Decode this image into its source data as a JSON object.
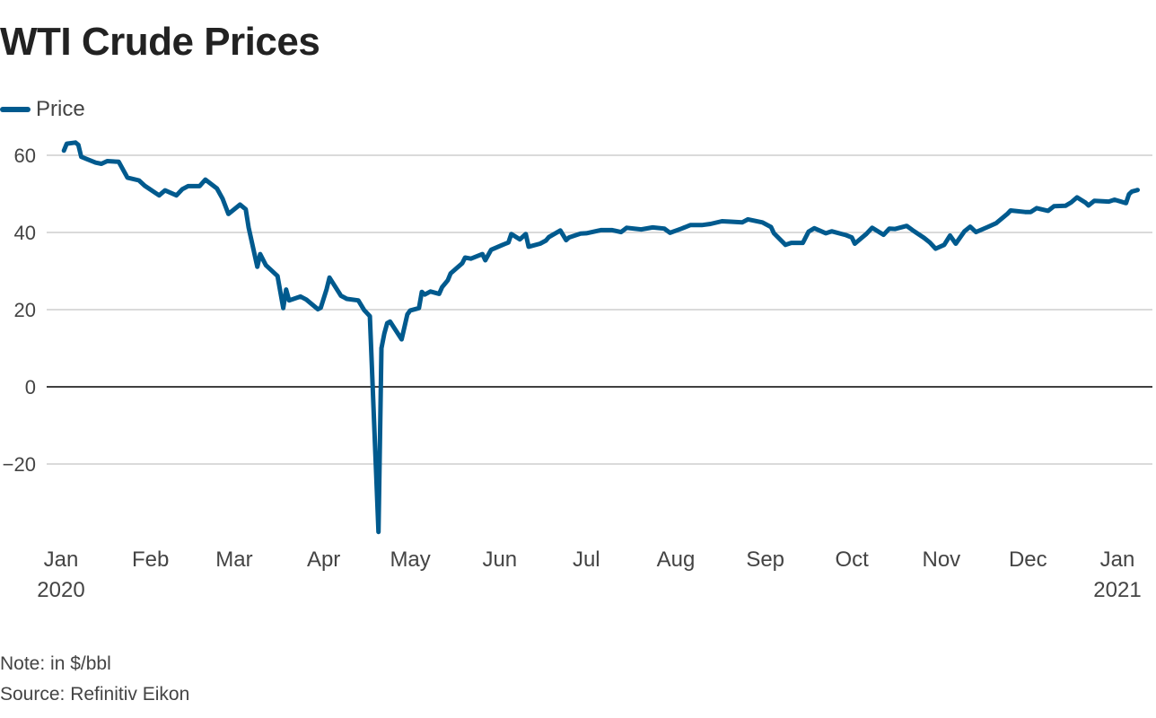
{
  "title": "WTI Crude Prices",
  "legend": {
    "label": "Price",
    "color": "#005a8e"
  },
  "notes": {
    "note": "Note: in $/bbl",
    "source": "Source: Refinitiv Eikon"
  },
  "chart_data": {
    "type": "line",
    "title": "WTI Crude Prices",
    "xlabel": "",
    "ylabel": "",
    "ylim": [
      -38,
      66
    ],
    "yticks": [
      60,
      40,
      20,
      0,
      -20
    ],
    "ytick_labels": [
      "60",
      "40",
      "20",
      "0",
      "−20"
    ],
    "xlim": [
      "2020-01-02",
      "2021-01-08"
    ],
    "xticks": [
      {
        "date": "2020-01-01",
        "label": "Jan",
        "sub": "2020"
      },
      {
        "date": "2020-02-01",
        "label": "Feb",
        "sub": ""
      },
      {
        "date": "2020-03-01",
        "label": "Mar",
        "sub": ""
      },
      {
        "date": "2020-04-01",
        "label": "Apr",
        "sub": ""
      },
      {
        "date": "2020-05-01",
        "label": "May",
        "sub": ""
      },
      {
        "date": "2020-06-01",
        "label": "Jun",
        "sub": ""
      },
      {
        "date": "2020-07-01",
        "label": "Jul",
        "sub": ""
      },
      {
        "date": "2020-08-01",
        "label": "Aug",
        "sub": ""
      },
      {
        "date": "2020-09-01",
        "label": "Sep",
        "sub": ""
      },
      {
        "date": "2020-10-01",
        "label": "Oct",
        "sub": ""
      },
      {
        "date": "2020-11-01",
        "label": "Nov",
        "sub": ""
      },
      {
        "date": "2020-12-01",
        "label": "Dec",
        "sub": ""
      },
      {
        "date": "2021-01-01",
        "label": "Jan",
        "sub": "2021"
      }
    ],
    "grid": true,
    "legend_position": "top-left",
    "series": [
      {
        "name": "Price",
        "color": "#005a8e",
        "points": [
          [
            "2020-01-02",
            61.2
          ],
          [
            "2020-01-03",
            63.0
          ],
          [
            "2020-01-06",
            63.3
          ],
          [
            "2020-01-07",
            62.7
          ],
          [
            "2020-01-08",
            59.6
          ],
          [
            "2020-01-10",
            59.0
          ],
          [
            "2020-01-13",
            58.1
          ],
          [
            "2020-01-15",
            57.8
          ],
          [
            "2020-01-17",
            58.5
          ],
          [
            "2020-01-21",
            58.3
          ],
          [
            "2020-01-23",
            55.6
          ],
          [
            "2020-01-24",
            54.2
          ],
          [
            "2020-01-28",
            53.5
          ],
          [
            "2020-01-30",
            52.1
          ],
          [
            "2020-02-03",
            50.1
          ],
          [
            "2020-02-04",
            49.6
          ],
          [
            "2020-02-06",
            50.9
          ],
          [
            "2020-02-10",
            49.6
          ],
          [
            "2020-02-12",
            51.2
          ],
          [
            "2020-02-14",
            52.0
          ],
          [
            "2020-02-18",
            52.0
          ],
          [
            "2020-02-20",
            53.7
          ],
          [
            "2020-02-24",
            51.4
          ],
          [
            "2020-02-26",
            48.7
          ],
          [
            "2020-02-28",
            44.8
          ],
          [
            "2020-03-03",
            47.2
          ],
          [
            "2020-03-05",
            46.0
          ],
          [
            "2020-03-06",
            41.3
          ],
          [
            "2020-03-09",
            31.1
          ],
          [
            "2020-03-10",
            34.4
          ],
          [
            "2020-03-12",
            31.5
          ],
          [
            "2020-03-16",
            28.7
          ],
          [
            "2020-03-18",
            20.4
          ],
          [
            "2020-03-19",
            25.2
          ],
          [
            "2020-03-20",
            22.4
          ],
          [
            "2020-03-24",
            23.4
          ],
          [
            "2020-03-26",
            22.6
          ],
          [
            "2020-03-30",
            20.1
          ],
          [
            "2020-03-31",
            20.5
          ],
          [
            "2020-04-02",
            25.3
          ],
          [
            "2020-04-03",
            28.3
          ],
          [
            "2020-04-07",
            23.6
          ],
          [
            "2020-04-09",
            22.8
          ],
          [
            "2020-04-13",
            22.4
          ],
          [
            "2020-04-15",
            19.9
          ],
          [
            "2020-04-17",
            18.3
          ],
          [
            "2020-04-20",
            -37.6
          ],
          [
            "2020-04-21",
            10.0
          ],
          [
            "2020-04-22",
            13.8
          ],
          [
            "2020-04-23",
            16.5
          ],
          [
            "2020-04-24",
            16.9
          ],
          [
            "2020-04-28",
            12.3
          ],
          [
            "2020-04-30",
            18.8
          ],
          [
            "2020-05-01",
            19.8
          ],
          [
            "2020-05-04",
            20.4
          ],
          [
            "2020-05-05",
            24.6
          ],
          [
            "2020-05-06",
            23.9
          ],
          [
            "2020-05-08",
            24.7
          ],
          [
            "2020-05-11",
            24.1
          ],
          [
            "2020-05-12",
            25.8
          ],
          [
            "2020-05-14",
            27.6
          ],
          [
            "2020-05-15",
            29.4
          ],
          [
            "2020-05-19",
            32.0
          ],
          [
            "2020-05-20",
            33.5
          ],
          [
            "2020-05-22",
            33.2
          ],
          [
            "2020-05-26",
            34.4
          ],
          [
            "2020-05-27",
            32.8
          ],
          [
            "2020-05-29",
            35.5
          ],
          [
            "2020-06-02",
            36.8
          ],
          [
            "2020-06-04",
            37.4
          ],
          [
            "2020-06-05",
            39.6
          ],
          [
            "2020-06-08",
            38.2
          ],
          [
            "2020-06-10",
            39.6
          ],
          [
            "2020-06-11",
            36.3
          ],
          [
            "2020-06-15",
            37.1
          ],
          [
            "2020-06-17",
            37.9
          ],
          [
            "2020-06-18",
            38.8
          ],
          [
            "2020-06-22",
            40.5
          ],
          [
            "2020-06-24",
            38.0
          ],
          [
            "2020-06-25",
            38.7
          ],
          [
            "2020-06-29",
            39.7
          ],
          [
            "2020-07-01",
            39.8
          ],
          [
            "2020-07-06",
            40.6
          ],
          [
            "2020-07-10",
            40.6
          ],
          [
            "2020-07-13",
            40.1
          ],
          [
            "2020-07-15",
            41.2
          ],
          [
            "2020-07-20",
            40.8
          ],
          [
            "2020-07-24",
            41.3
          ],
          [
            "2020-07-28",
            41.0
          ],
          [
            "2020-07-30",
            39.9
          ],
          [
            "2020-08-03",
            41.0
          ],
          [
            "2020-08-06",
            41.9
          ],
          [
            "2020-08-10",
            41.9
          ],
          [
            "2020-08-13",
            42.2
          ],
          [
            "2020-08-17",
            42.9
          ],
          [
            "2020-08-20",
            42.8
          ],
          [
            "2020-08-24",
            42.6
          ],
          [
            "2020-08-26",
            43.4
          ],
          [
            "2020-08-31",
            42.6
          ],
          [
            "2020-09-03",
            41.4
          ],
          [
            "2020-09-04",
            39.8
          ],
          [
            "2020-09-08",
            36.8
          ],
          [
            "2020-09-10",
            37.3
          ],
          [
            "2020-09-14",
            37.3
          ],
          [
            "2020-09-16",
            40.2
          ],
          [
            "2020-09-18",
            41.1
          ],
          [
            "2020-09-22",
            39.8
          ],
          [
            "2020-09-24",
            40.3
          ],
          [
            "2020-09-29",
            39.3
          ],
          [
            "2020-10-01",
            38.7
          ],
          [
            "2020-10-02",
            37.1
          ],
          [
            "2020-10-06",
            39.6
          ],
          [
            "2020-10-08",
            41.2
          ],
          [
            "2020-10-12",
            39.4
          ],
          [
            "2020-10-14",
            41.0
          ],
          [
            "2020-10-16",
            40.9
          ],
          [
            "2020-10-20",
            41.7
          ],
          [
            "2020-10-22",
            40.6
          ],
          [
            "2020-10-26",
            38.6
          ],
          [
            "2020-10-28",
            37.4
          ],
          [
            "2020-10-30",
            35.8
          ],
          [
            "2020-11-02",
            36.8
          ],
          [
            "2020-11-04",
            39.2
          ],
          [
            "2020-11-06",
            37.1
          ],
          [
            "2020-11-09",
            40.3
          ],
          [
            "2020-11-11",
            41.5
          ],
          [
            "2020-11-13",
            40.1
          ],
          [
            "2020-11-17",
            41.4
          ],
          [
            "2020-11-20",
            42.4
          ],
          [
            "2020-11-24",
            44.9
          ],
          [
            "2020-11-25",
            45.7
          ],
          [
            "2020-11-30",
            45.3
          ],
          [
            "2020-12-02",
            45.3
          ],
          [
            "2020-12-04",
            46.3
          ],
          [
            "2020-12-08",
            45.6
          ],
          [
            "2020-12-10",
            46.8
          ],
          [
            "2020-12-14",
            46.9
          ],
          [
            "2020-12-16",
            47.8
          ],
          [
            "2020-12-18",
            49.1
          ],
          [
            "2020-12-21",
            47.7
          ],
          [
            "2020-12-22",
            47.0
          ],
          [
            "2020-12-24",
            48.2
          ],
          [
            "2020-12-29",
            48.0
          ],
          [
            "2020-12-31",
            48.5
          ],
          [
            "2021-01-04",
            47.6
          ],
          [
            "2021-01-05",
            49.9
          ],
          [
            "2021-01-06",
            50.6
          ],
          [
            "2021-01-07",
            50.8
          ],
          [
            "2021-01-08",
            51.0
          ]
        ]
      }
    ]
  }
}
